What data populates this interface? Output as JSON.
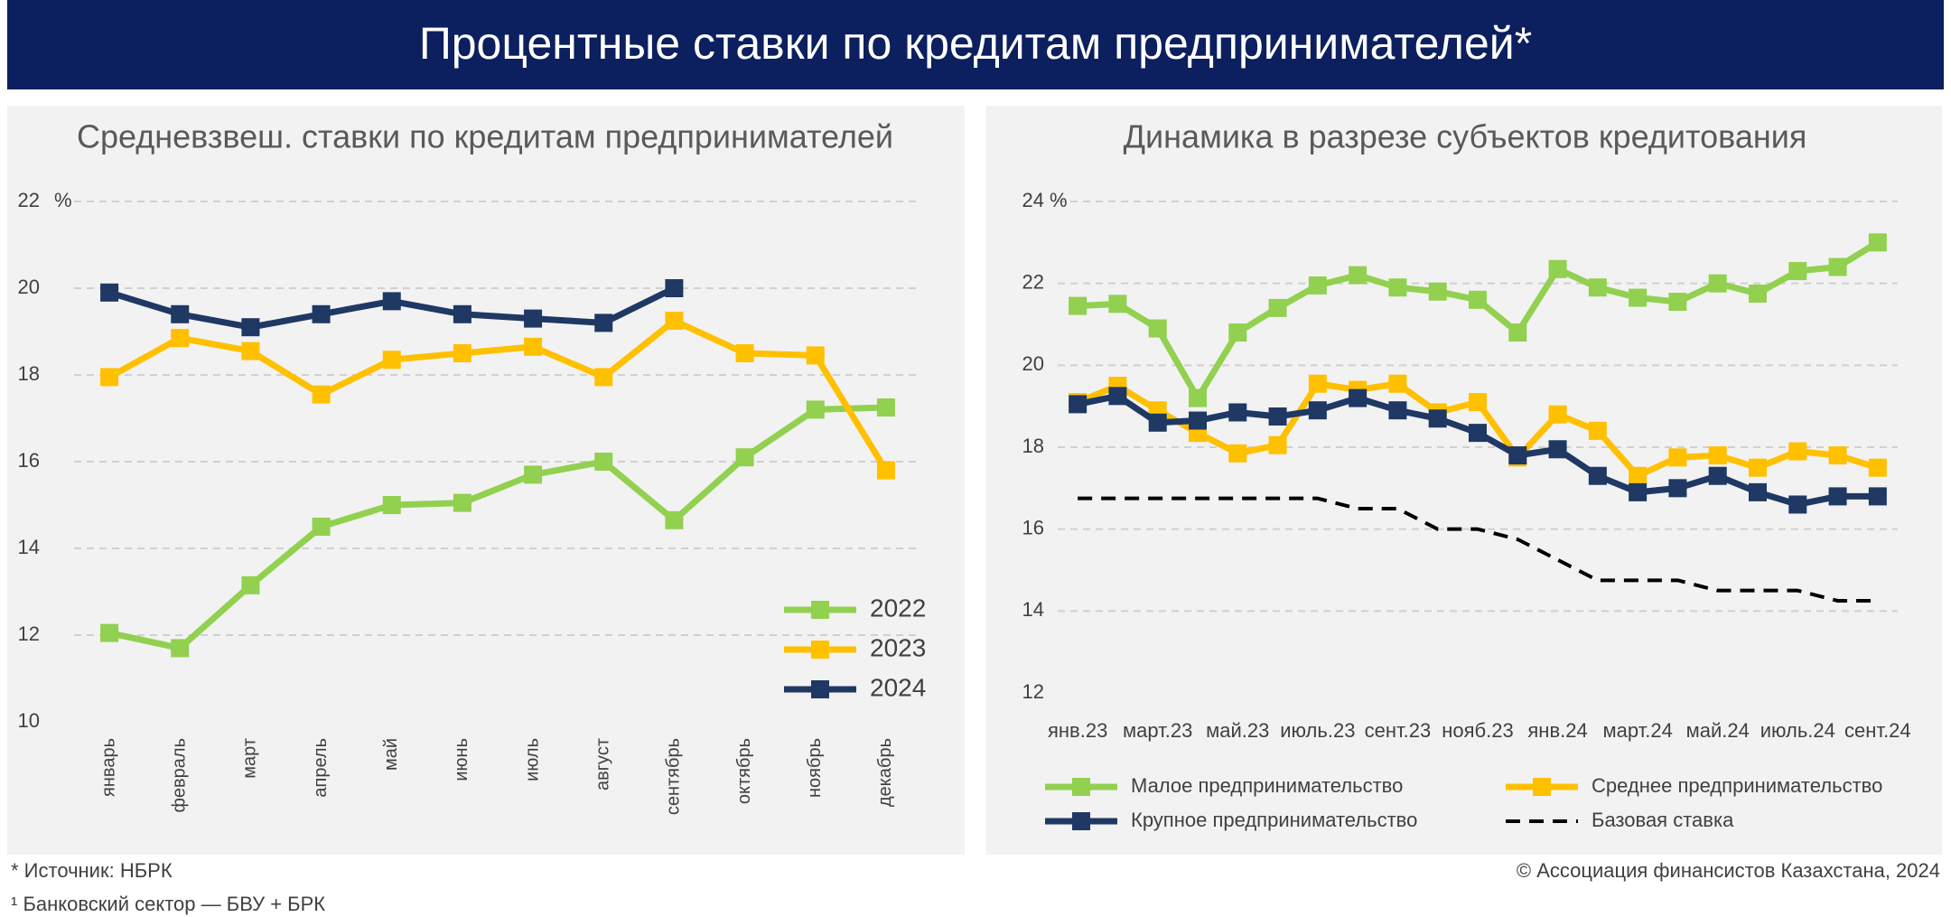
{
  "header": {
    "title": "Процентные ставки по кредитам предпринимателей*"
  },
  "footer": {
    "source": "* Источник: НБРК",
    "note": "¹ Банковский сектор — БВУ + БРК",
    "copyright": "© Ассоциация финансистов Казахстана, 2024"
  },
  "chart_data": [
    {
      "type": "line",
      "title": "Средневзвеш. ставки по кредитам предпринимателей",
      "y_unit": "%",
      "categories": [
        "январь",
        "февраль",
        "март",
        "апрель",
        "май",
        "июнь",
        "июль",
        "август",
        "сентябрь",
        "октябрь",
        "ноябрь",
        "декабрь"
      ],
      "ylim": [
        10,
        22
      ],
      "yticks": [
        10,
        12,
        14,
        16,
        18,
        20,
        22
      ],
      "grid": true,
      "legend": "lower right",
      "series": [
        {
          "name": "2022",
          "color": "#92d050",
          "marker": "square",
          "values": [
            12.05,
            11.7,
            13.15,
            14.5,
            15.0,
            15.05,
            15.7,
            16.0,
            14.65,
            16.1,
            17.2,
            17.25
          ]
        },
        {
          "name": "2023",
          "color": "#ffc000",
          "marker": "square",
          "values": [
            17.95,
            18.85,
            18.55,
            17.55,
            18.35,
            18.5,
            18.65,
            17.95,
            19.25,
            18.5,
            18.45,
            15.8
          ]
        },
        {
          "name": "2024",
          "color": "#1f3864",
          "marker": "square",
          "values": [
            19.9,
            19.4,
            19.1,
            19.4,
            19.7,
            19.4,
            19.3,
            19.2,
            20.0,
            null,
            null,
            null
          ]
        }
      ]
    },
    {
      "type": "line",
      "title": "Динамика в разрезе субъектов кредитования",
      "y_unit": "%",
      "categories": [
        "янв.23",
        null,
        "март.23",
        null,
        "май.23",
        null,
        "июль.23",
        null,
        "сент.23",
        null,
        "нояб.23",
        null,
        "янв.24",
        null,
        "март.24",
        null,
        "май.24",
        null,
        "июль.24",
        null,
        "сент.24"
      ],
      "ylim": [
        12,
        24
      ],
      "yticks": [
        12,
        14,
        16,
        18,
        20,
        22,
        24
      ],
      "grid": true,
      "legend": "bottom",
      "series": [
        {
          "name": "Малое предпринимательство",
          "color": "#92d050",
          "marker": "square",
          "values": [
            21.45,
            21.5,
            20.9,
            19.2,
            20.8,
            21.4,
            21.95,
            22.2,
            21.9,
            21.8,
            21.6,
            20.8,
            22.35,
            21.9,
            21.65,
            21.55,
            22.0,
            21.75,
            22.3,
            22.4,
            23.0
          ]
        },
        {
          "name": "Среднее предпринимательство",
          "color": "#ffc000",
          "marker": "square",
          "values": [
            19.1,
            19.5,
            18.9,
            18.35,
            17.85,
            18.05,
            19.55,
            19.4,
            19.55,
            18.85,
            19.1,
            17.75,
            18.8,
            18.4,
            17.3,
            17.75,
            17.8,
            17.5,
            17.9,
            17.8,
            17.5
          ]
        },
        {
          "name": "Крупное предпринимательство",
          "color": "#1f3864",
          "marker": "square",
          "values": [
            19.05,
            19.25,
            18.6,
            18.65,
            18.85,
            18.75,
            18.9,
            19.2,
            18.9,
            18.7,
            18.35,
            17.8,
            17.95,
            17.3,
            16.9,
            17.0,
            17.3,
            16.9,
            16.6,
            16.8,
            16.8
          ]
        },
        {
          "name": "Базовая ставка",
          "color": "#000000",
          "line_style": "dashed",
          "values": [
            16.75,
            16.75,
            16.75,
            16.75,
            16.75,
            16.75,
            16.75,
            16.5,
            16.5,
            16.0,
            16.0,
            15.75,
            15.25,
            14.75,
            14.75,
            14.75,
            14.5,
            14.5,
            14.5,
            14.25,
            14.25
          ]
        }
      ]
    }
  ]
}
